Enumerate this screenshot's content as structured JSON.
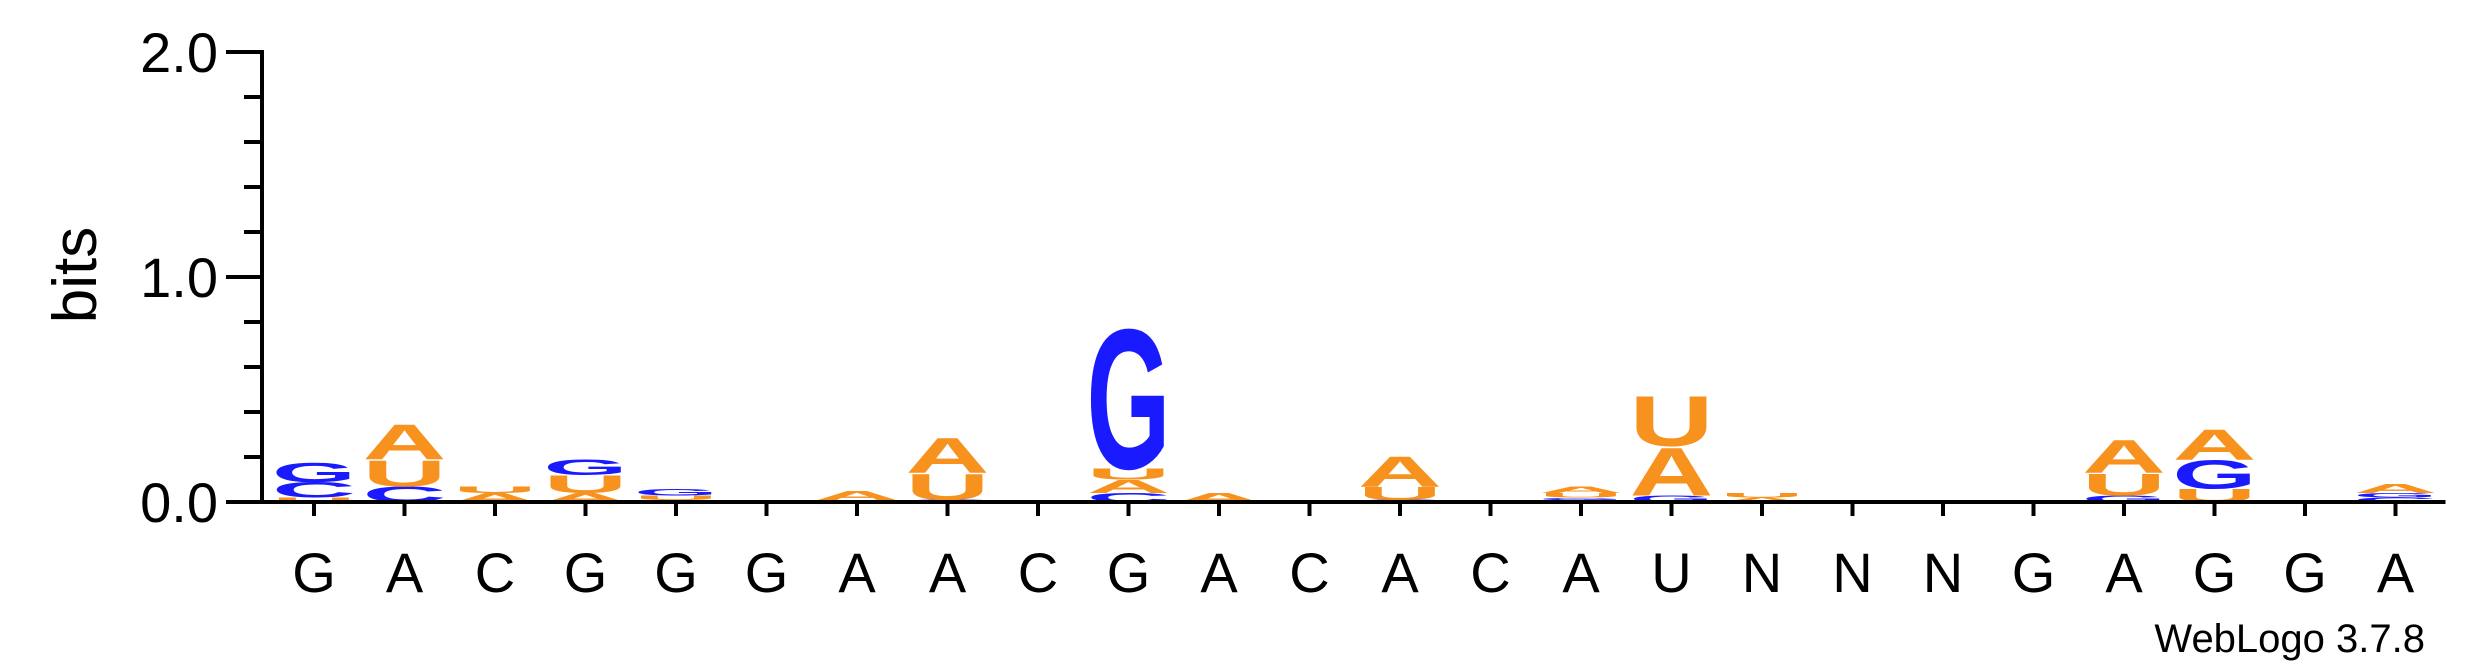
{
  "chart_data": {
    "type": "sequence-logo",
    "ylabel": "bits",
    "ylim": [
      0,
      2.0
    ],
    "yticks": [
      "0.0",
      "1.0",
      "2.0"
    ],
    "ytick_values": [
      0,
      1.0,
      2.0
    ],
    "yminor_step": 0.2,
    "colors": {
      "A": "#f7921e",
      "U": "#f7921e",
      "C": "#1a1aff",
      "G": "#1a1aff"
    },
    "positions": [
      {
        "label": "G",
        "stack": [
          {
            "base": "U",
            "bits": 0.02
          },
          {
            "base": "C",
            "bits": 0.07
          },
          {
            "base": "G",
            "bits": 0.09
          }
        ]
      },
      {
        "label": "A",
        "stack": [
          {
            "base": "C",
            "bits": 0.07
          },
          {
            "base": "U",
            "bits": 0.12
          },
          {
            "base": "A",
            "bits": 0.16
          }
        ]
      },
      {
        "label": "C",
        "stack": [
          {
            "base": "A",
            "bits": 0.04
          },
          {
            "base": "U",
            "bits": 0.03
          }
        ]
      },
      {
        "label": "G",
        "stack": [
          {
            "base": "A",
            "bits": 0.04
          },
          {
            "base": "U",
            "bits": 0.08
          },
          {
            "base": "G",
            "bits": 0.07
          }
        ]
      },
      {
        "label": "G",
        "stack": [
          {
            "base": "A",
            "bits": 0.01
          },
          {
            "base": "U",
            "bits": 0.02
          },
          {
            "base": "G",
            "bits": 0.03
          }
        ]
      },
      {
        "label": "G",
        "stack": []
      },
      {
        "label": "A",
        "stack": [
          {
            "base": "U",
            "bits": 0.01
          },
          {
            "base": "A",
            "bits": 0.04
          }
        ]
      },
      {
        "label": "A",
        "stack": [
          {
            "base": "C",
            "bits": 0.01
          },
          {
            "base": "U",
            "bits": 0.12
          },
          {
            "base": "A",
            "bits": 0.16
          }
        ]
      },
      {
        "label": "C",
        "stack": []
      },
      {
        "label": "G",
        "stack": [
          {
            "base": "C",
            "bits": 0.04
          },
          {
            "base": "A",
            "bits": 0.06
          },
          {
            "base": "U",
            "bits": 0.05
          },
          {
            "base": "G",
            "bits": 0.64
          }
        ]
      },
      {
        "label": "A",
        "stack": [
          {
            "base": "A",
            "bits": 0.04
          }
        ]
      },
      {
        "label": "C",
        "stack": []
      },
      {
        "label": "A",
        "stack": [
          {
            "base": "C",
            "bits": 0.01
          },
          {
            "base": "U",
            "bits": 0.06
          },
          {
            "base": "A",
            "bits": 0.14
          }
        ]
      },
      {
        "label": "C",
        "stack": []
      },
      {
        "label": "A",
        "stack": [
          {
            "base": "C",
            "bits": 0.01
          },
          {
            "base": "G",
            "bits": 0.01
          },
          {
            "base": "U",
            "bits": 0.02
          },
          {
            "base": "A",
            "bits": 0.03
          }
        ]
      },
      {
        "label": "U",
        "stack": [
          {
            "base": "G",
            "bits": 0.03
          },
          {
            "base": "A",
            "bits": 0.22
          },
          {
            "base": "U",
            "bits": 0.23
          }
        ]
      },
      {
        "label": "N",
        "stack": [
          {
            "base": "A",
            "bits": 0.02
          },
          {
            "base": "U",
            "bits": 0.02
          }
        ]
      },
      {
        "label": "N",
        "stack": []
      },
      {
        "label": "N",
        "stack": []
      },
      {
        "label": "G",
        "stack": []
      },
      {
        "label": "A",
        "stack": [
          {
            "base": "G",
            "bits": 0.03
          },
          {
            "base": "U",
            "bits": 0.1
          },
          {
            "base": "A",
            "bits": 0.15
          }
        ]
      },
      {
        "label": "G",
        "stack": [
          {
            "base": "U",
            "bits": 0.06
          },
          {
            "base": "G",
            "bits": 0.13
          },
          {
            "base": "A",
            "bits": 0.14
          }
        ]
      },
      {
        "label": "G",
        "stack": []
      },
      {
        "label": "A",
        "stack": [
          {
            "base": "C",
            "bits": 0.02
          },
          {
            "base": "G",
            "bits": 0.02
          },
          {
            "base": "A",
            "bits": 0.04
          }
        ]
      }
    ]
  },
  "credit": "WebLogo 3.7.8"
}
